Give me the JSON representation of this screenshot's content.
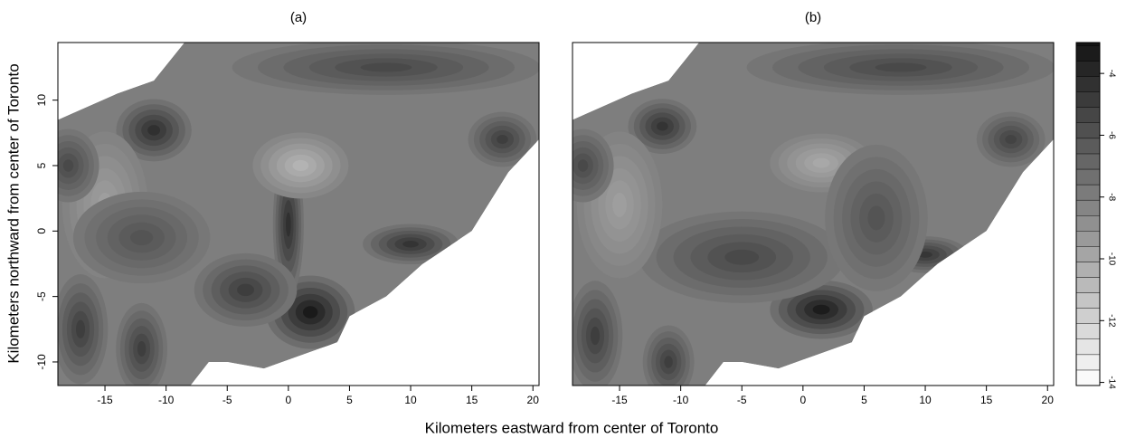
{
  "chart_data": [
    {
      "type": "contour",
      "title": "(a)",
      "xlim": [
        -18.85,
        20.5
      ],
      "ylim": [
        -11.8,
        14.4
      ],
      "xticks": [
        -15,
        -10,
        -5,
        0,
        5,
        10,
        15,
        20
      ],
      "yticks": [
        -10,
        -5,
        0,
        5,
        10
      ],
      "base_level": -8,
      "boundary": [
        [
          -18.85,
          8.5
        ],
        [
          -14,
          10.5
        ],
        [
          -11,
          11.5
        ],
        [
          -8.5,
          14.4
        ],
        [
          20.5,
          14.4
        ],
        [
          20.5,
          7
        ],
        [
          18,
          4.5
        ],
        [
          15,
          0
        ],
        [
          11,
          -2.5
        ],
        [
          8,
          -5
        ],
        [
          5,
          -6.5
        ],
        [
          4,
          -8.5
        ],
        [
          1,
          -9.5
        ],
        [
          -2,
          -10.5
        ],
        [
          -5,
          -10
        ],
        [
          -6.5,
          -10
        ],
        [
          -8,
          -11.8
        ],
        [
          -18.85,
          -11.8
        ]
      ],
      "hotspots": [
        {
          "x": 1.8,
          "y": -6.2,
          "rx": 2.6,
          "ry": 2,
          "level": -3.3
        },
        {
          "x": 0,
          "y": 0.5,
          "rx": 0.9,
          "ry": 4,
          "level": -4.3
        },
        {
          "x": -11,
          "y": 7.7,
          "rx": 2.2,
          "ry": 1.7,
          "level": -4.3
        },
        {
          "x": 10,
          "y": -1,
          "rx": 2.8,
          "ry": 1.1,
          "level": -4.5
        },
        {
          "x": 17.5,
          "y": 7,
          "rx": 2,
          "ry": 1.5,
          "level": -5
        },
        {
          "x": 1,
          "y": 5,
          "rx": 2.8,
          "ry": 1.8,
          "level": -10.5
        },
        {
          "x": 8,
          "y": 12.5,
          "rx": 9,
          "ry": 1.5,
          "level": -5.5
        },
        {
          "x": -17,
          "y": -7.5,
          "rx": 1.6,
          "ry": 3,
          "level": -5
        },
        {
          "x": -12,
          "y": -9,
          "rx": 1.5,
          "ry": 2.5,
          "level": -5
        },
        {
          "x": -15,
          "y": 2,
          "rx": 2.5,
          "ry": 4,
          "level": -9.5
        },
        {
          "x": -3.5,
          "y": -4.5,
          "rx": 3,
          "ry": 2,
          "level": -5
        },
        {
          "x": -18,
          "y": 5,
          "rx": 1.8,
          "ry": 2,
          "level": -5.5
        },
        {
          "x": -12,
          "y": -0.5,
          "rx": 4,
          "ry": 2.5,
          "level": -6
        }
      ]
    },
    {
      "type": "contour",
      "title": "(b)",
      "xlim": [
        -18.85,
        20.5
      ],
      "ylim": [
        -11.8,
        14.4
      ],
      "xticks": [
        -15,
        -10,
        -5,
        0,
        5,
        10,
        15,
        20
      ],
      "yticks": [
        -10,
        -5,
        0,
        5,
        10
      ],
      "base_level": -8,
      "boundary": [
        [
          -18.85,
          8.5
        ],
        [
          -14,
          10.5
        ],
        [
          -11,
          11.5
        ],
        [
          -8.5,
          14.4
        ],
        [
          20.5,
          14.4
        ],
        [
          20.5,
          7
        ],
        [
          18,
          4.5
        ],
        [
          15,
          0
        ],
        [
          11,
          -2.5
        ],
        [
          8,
          -5
        ],
        [
          5,
          -6.5
        ],
        [
          4,
          -8.5
        ],
        [
          1,
          -9.5
        ],
        [
          -2,
          -10.5
        ],
        [
          -5,
          -10
        ],
        [
          -6.5,
          -10
        ],
        [
          -8,
          -11.8
        ],
        [
          -18.85,
          -11.8
        ]
      ],
      "hotspots": [
        {
          "x": 1.5,
          "y": -6,
          "rx": 3,
          "ry": 1.6,
          "level": -3.4
        },
        {
          "x": -11.5,
          "y": 8,
          "rx": 2,
          "ry": 1.5,
          "level": -4.5
        },
        {
          "x": 10,
          "y": -1.8,
          "rx": 2.5,
          "ry": 1,
          "level": -4.6
        },
        {
          "x": 17,
          "y": 7,
          "rx": 2,
          "ry": 1.5,
          "level": -5.2
        },
        {
          "x": 1.5,
          "y": 5.2,
          "rx": 3,
          "ry": 1.6,
          "level": -10
        },
        {
          "x": 8,
          "y": 12.5,
          "rx": 9,
          "ry": 1.5,
          "level": -5.5
        },
        {
          "x": -5,
          "y": -2,
          "rx": 6,
          "ry": 2.5,
          "level": -5.5
        },
        {
          "x": -17,
          "y": -8,
          "rx": 1.6,
          "ry": 3,
          "level": -5
        },
        {
          "x": -11,
          "y": -10,
          "rx": 1.5,
          "ry": 2,
          "level": -5
        },
        {
          "x": -15,
          "y": 2,
          "rx": 2.5,
          "ry": 4,
          "level": -9.5
        },
        {
          "x": -18,
          "y": 5,
          "rx": 1.8,
          "ry": 2,
          "level": -5.5
        },
        {
          "x": 6,
          "y": 1,
          "rx": 3,
          "ry": 4,
          "level": -6
        }
      ]
    }
  ],
  "colorbar": {
    "clim": [
      -14.1,
      -3
    ],
    "level_step": 0.5,
    "ticks": [
      -4,
      -6,
      -8,
      -10,
      -12,
      -14
    ]
  },
  "x_label": "Kilometers eastward from center of Toronto",
  "y_label": "Kilometers northward from center of Toronto"
}
